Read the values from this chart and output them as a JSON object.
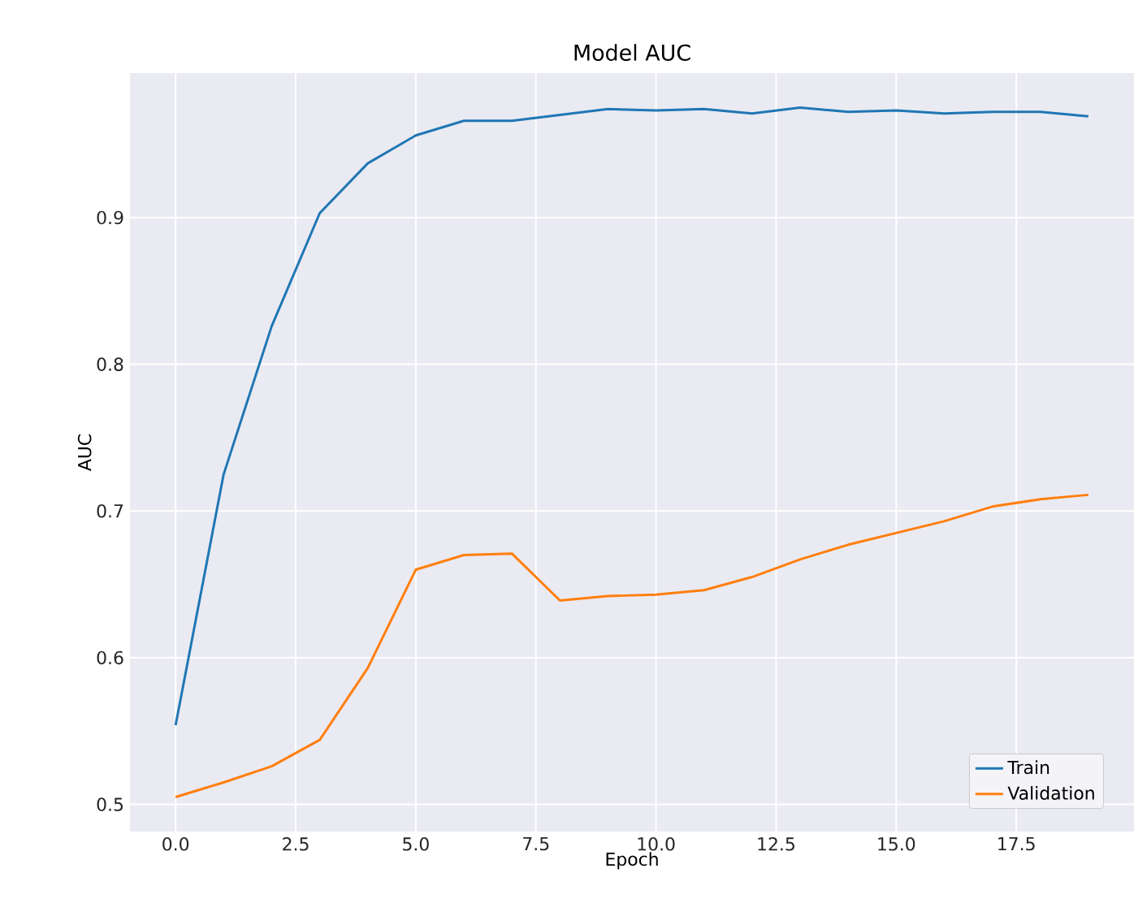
{
  "chart_data": {
    "type": "line",
    "title": "Model AUC",
    "xlabel": "Epoch",
    "ylabel": "AUC",
    "x": [
      0,
      1,
      2,
      3,
      4,
      5,
      6,
      7,
      8,
      9,
      10,
      11,
      12,
      13,
      14,
      15,
      16,
      17,
      18,
      19
    ],
    "series": [
      {
        "name": "Train",
        "color": "#1f77b4",
        "values": [
          0.554,
          0.725,
          0.826,
          0.903,
          0.937,
          0.956,
          0.966,
          0.966,
          0.97,
          0.974,
          0.973,
          0.974,
          0.971,
          0.975,
          0.972,
          0.973,
          0.971,
          0.972,
          0.972,
          0.969
        ]
      },
      {
        "name": "Validation",
        "color": "#ff7f0e",
        "values": [
          0.505,
          0.515,
          0.526,
          0.544,
          0.593,
          0.66,
          0.67,
          0.671,
          0.639,
          0.642,
          0.643,
          0.646,
          0.655,
          0.667,
          0.677,
          0.685,
          0.693,
          0.703,
          0.708,
          0.711
        ]
      }
    ],
    "xlim": [
      -0.95,
      19.95
    ],
    "ylim": [
      0.4815,
      0.9985
    ],
    "xticks": [
      {
        "value": 0,
        "label": "0.0"
      },
      {
        "value": 2.5,
        "label": "2.5"
      },
      {
        "value": 5,
        "label": "5.0"
      },
      {
        "value": 7.5,
        "label": "7.5"
      },
      {
        "value": 10,
        "label": "10.0"
      },
      {
        "value": 12.5,
        "label": "12.5"
      },
      {
        "value": 15,
        "label": "15.0"
      },
      {
        "value": 17.5,
        "label": "17.5"
      }
    ],
    "yticks": [
      0.5,
      0.6,
      0.7,
      0.8,
      0.9
    ],
    "grid": true,
    "legend": "bottom right",
    "marker": "none",
    "line_style": "solid"
  }
}
